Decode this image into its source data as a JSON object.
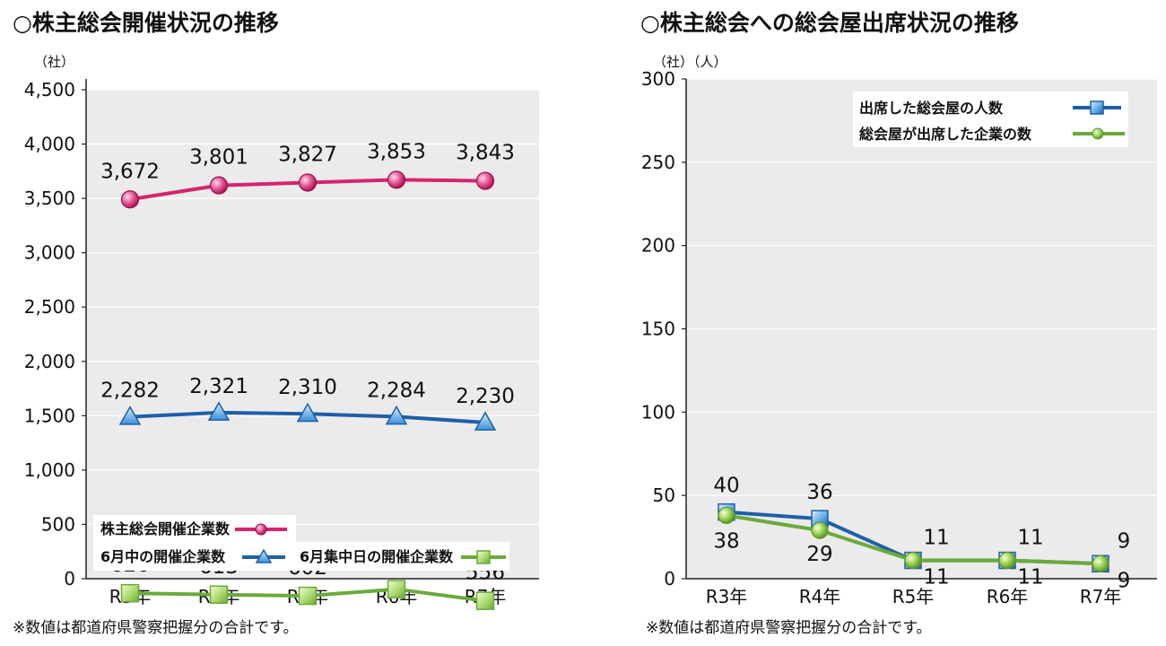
{
  "charts": [
    {
      "title": "○株主総会開催状況の推移",
      "unit": "（社）",
      "footnote": "※数値は都道府県警察把握分の合計です。"
    },
    {
      "title": "○株主総会への総会屋出席状況の推移",
      "unit": "（社）（人）",
      "footnote": "※数値は都道府県警察把握分の合計です。"
    }
  ],
  "chart_data": [
    {
      "type": "line",
      "title": "○株主総会開催状況の推移",
      "ylabel": "（社）",
      "categories": [
        "R3年",
        "R4年",
        "R5年",
        "R6年",
        "R7年"
      ],
      "ylim": [
        0,
        4500
      ],
      "yticks": [
        0,
        500,
        1000,
        1500,
        2000,
        2500,
        3000,
        3500,
        4000,
        4500
      ],
      "ytick_labels": [
        "0",
        "500",
        "1,000",
        "1,500",
        "2,000",
        "2,500",
        "3,000",
        "3,500",
        "4,000",
        "4,500"
      ],
      "grid": true,
      "legend": "bottom-left",
      "series": [
        {
          "name": "株主総会開催企業数",
          "values": [
            3672,
            3801,
            3827,
            3853,
            3843
          ],
          "value_labels": [
            "3,672",
            "3,801",
            "3,827",
            "3,853",
            "3,843"
          ],
          "color": "#d6246e",
          "marker": "circle"
        },
        {
          "name": "6月中の開催企業数",
          "values": [
            2282,
            2321,
            2310,
            2284,
            2230
          ],
          "value_labels": [
            "2,282",
            "2,321",
            "2,310",
            "2,284",
            "2,230"
          ],
          "color": "#1f5fa8",
          "marker": "triangle"
        },
        {
          "name": "6月集中日の開催企業数",
          "values": [
            626,
            613,
            602,
            663,
            556
          ],
          "value_labels": [
            "626",
            "613",
            "602",
            "663",
            "556"
          ],
          "color": "#6aaa3a",
          "marker": "square"
        }
      ]
    },
    {
      "type": "line",
      "title": "○株主総会への総会屋出席状況の推移",
      "ylabel": "（社）（人）",
      "categories": [
        "R3年",
        "R4年",
        "R5年",
        "R6年",
        "R7年"
      ],
      "ylim": [
        0,
        300
      ],
      "yticks": [
        0,
        50,
        100,
        150,
        200,
        250,
        300
      ],
      "ytick_labels": [
        "0",
        "50",
        "100",
        "150",
        "200",
        "250",
        "300"
      ],
      "grid": true,
      "legend": "top-right",
      "series": [
        {
          "name": "出席した総会屋の人数",
          "values": [
            40,
            36,
            11,
            11,
            9
          ],
          "value_labels": [
            "40",
            "36",
            "11",
            "11",
            "9"
          ],
          "color": "#1f5fa8",
          "marker": "square"
        },
        {
          "name": "総会屋が出席した企業の数",
          "values": [
            38,
            29,
            11,
            11,
            9
          ],
          "value_labels": [
            "38",
            "29",
            "11",
            "11",
            "9"
          ],
          "color": "#6aaa3a",
          "marker": "circle"
        }
      ]
    }
  ]
}
